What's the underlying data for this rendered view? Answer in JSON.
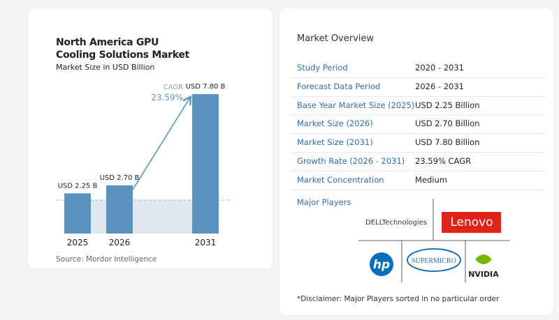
{
  "chart_data": {
    "type": "bar",
    "title": "North America GPU Cooling Solutions Market",
    "subtitle": "Market Size in USD Billion",
    "categories": [
      "2025",
      "2026",
      "2031"
    ],
    "values": [
      2.25,
      2.7,
      7.8
    ],
    "value_labels": [
      "USD 2.25 B",
      "USD 2.70 B",
      "USD 7.80 B"
    ],
    "color": "#5b93c0",
    "annotation_label": "CAGR",
    "annotation_value": "23.59%"
  },
  "source": "Source: Mordor Intelligence",
  "overview": {
    "title": "Market Overview",
    "rows": [
      [
        "Study Period",
        "2020 - 2031"
      ],
      [
        "Forecast Data Period",
        "2026 - 2031"
      ],
      [
        "Base Year Market Size (2025)",
        "USD 2.25 Billion"
      ],
      [
        "Market Size (2026)",
        "USD 2.70 Billion"
      ],
      [
        "Market Size (2031)",
        "USD 7.80 Billion"
      ],
      [
        "Growth Rate (2026 - 2031)",
        "23.59% CAGR"
      ],
      [
        "Market Concentration",
        "Medium"
      ]
    ]
  },
  "players_title": "Major Players",
  "players": [
    "DELLTechnologies",
    "Lenovo",
    "hp",
    "SUPERMICRO",
    "NVIDIA"
  ],
  "disclaimer": "*Disclaimer: Major Players sorted in no particular order"
}
